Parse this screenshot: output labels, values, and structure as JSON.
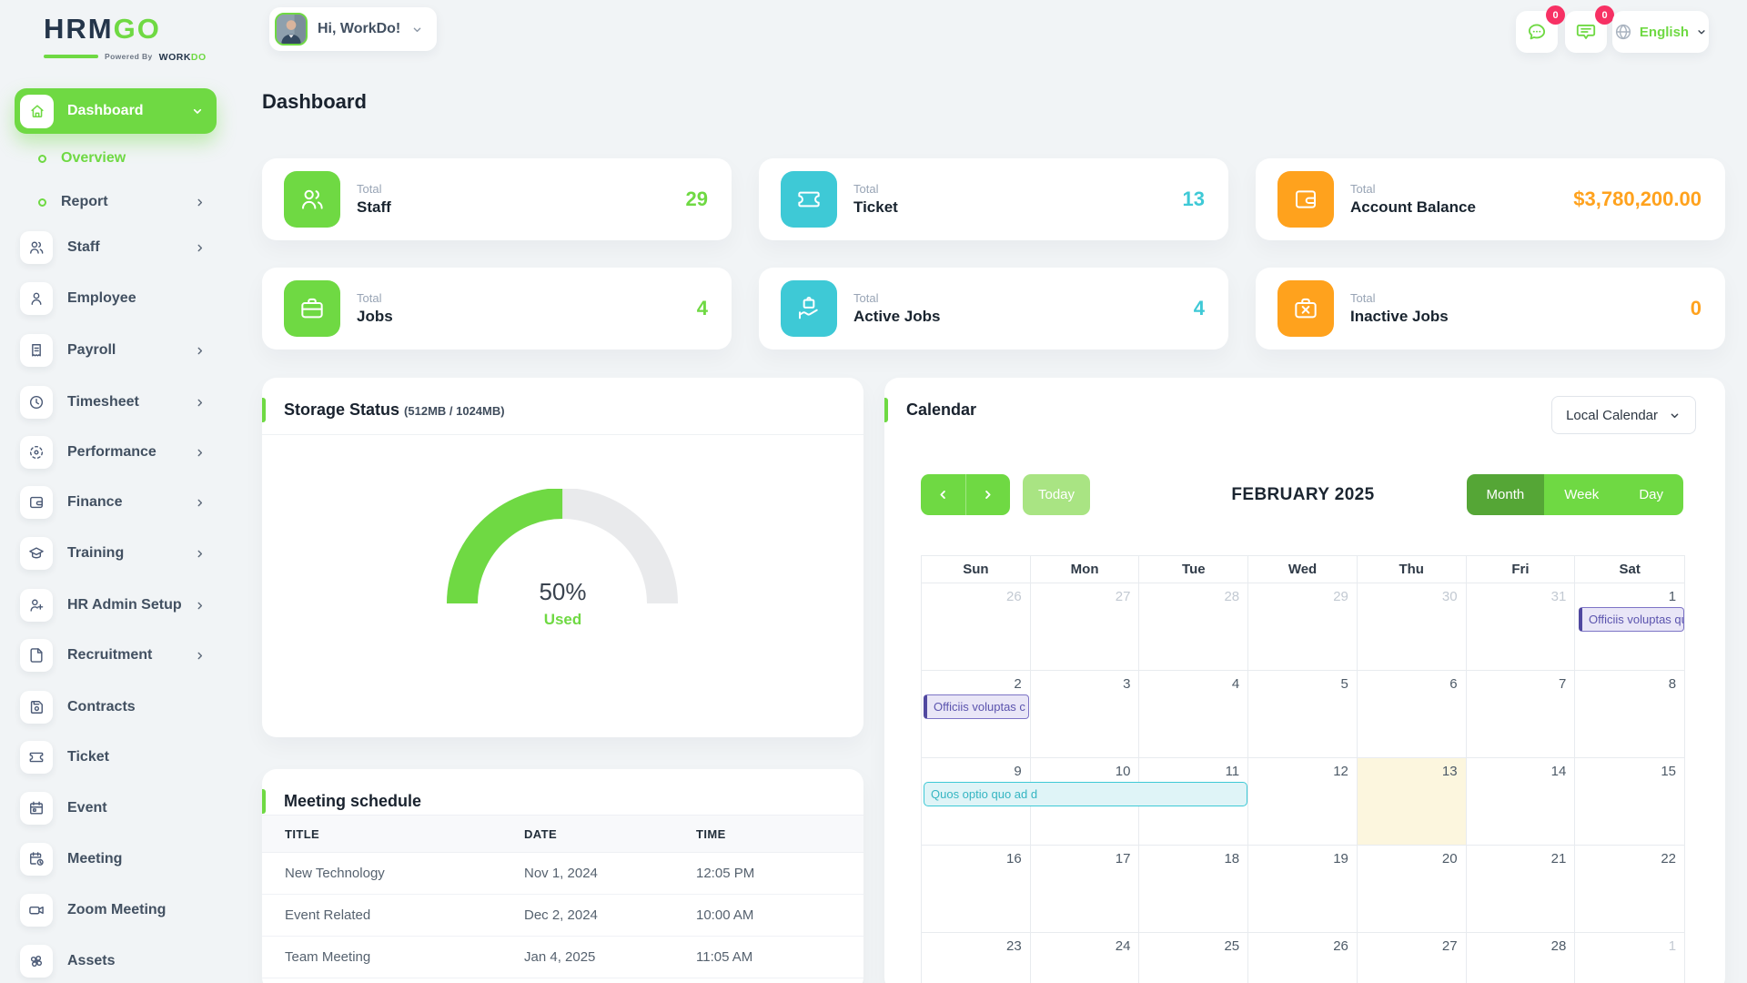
{
  "colors": {
    "green": "#6fd943",
    "dark_green": "#55a636",
    "light_green": "#a9e483",
    "cyan": "#3ec9d6",
    "orange": "#ffa21d",
    "badge": "#f73164",
    "purple": "#5b54ae"
  },
  "brand": {
    "hrm": "HRM",
    "go": "GO",
    "powered_by": "Powered By",
    "work": "WORK",
    "do": "DO"
  },
  "header": {
    "greeting": "Hi, WorkDo!",
    "language": "English",
    "messages_badge": "0",
    "notifications_badge": "0"
  },
  "page_title": "Dashboard",
  "sidebar": {
    "items": [
      {
        "label": "Dashboard",
        "icon": "home",
        "active": true,
        "chevron": "down"
      },
      {
        "label": "Overview",
        "icon": "ring",
        "sub": true,
        "active": true
      },
      {
        "label": "Report",
        "icon": "ring",
        "sub": true,
        "chevron": "right"
      },
      {
        "label": "Staff",
        "icon": "staff",
        "chevron": "right"
      },
      {
        "label": "Employee",
        "icon": "person"
      },
      {
        "label": "Payroll",
        "icon": "receipt",
        "chevron": "right"
      },
      {
        "label": "Timesheet",
        "icon": "clock",
        "chevron": "right"
      },
      {
        "label": "Performance",
        "icon": "target",
        "chevron": "right"
      },
      {
        "label": "Finance",
        "icon": "wallet",
        "chevron": "right"
      },
      {
        "label": "Training",
        "icon": "graduation",
        "chevron": "right"
      },
      {
        "label": "HR Admin Setup",
        "icon": "user-plus",
        "chevron": "right"
      },
      {
        "label": "Recruitment",
        "icon": "file",
        "chevron": "right"
      },
      {
        "label": "Contracts",
        "icon": "save"
      },
      {
        "label": "Ticket",
        "icon": "ticket"
      },
      {
        "label": "Event",
        "icon": "calendar"
      },
      {
        "label": "Meeting",
        "icon": "calendar-clock"
      },
      {
        "label": "Zoom Meeting",
        "icon": "video"
      },
      {
        "label": "Assets",
        "icon": "pinwheel"
      }
    ]
  },
  "stats": [
    {
      "prefix": "Total",
      "label": "Staff",
      "value": "29",
      "color": "green",
      "icon": "staff"
    },
    {
      "prefix": "Total",
      "label": "Ticket",
      "value": "13",
      "color": "cyan",
      "icon": "ticket"
    },
    {
      "prefix": "Total",
      "label": "Account Balance",
      "value": "$3,780,200.00",
      "color": "orange",
      "icon": "wallet"
    },
    {
      "prefix": "Total",
      "label": "Jobs",
      "value": "4",
      "color": "green",
      "icon": "briefcase"
    },
    {
      "prefix": "Total",
      "label": "Active Jobs",
      "value": "4",
      "color": "cyan",
      "icon": "hand-briefcase"
    },
    {
      "prefix": "Total",
      "label": "Inactive Jobs",
      "value": "0",
      "color": "orange",
      "icon": "briefcase-x"
    }
  ],
  "storage": {
    "title": "Storage Status",
    "subtitle": "(512MB / 1024MB)",
    "percent": 50,
    "percent_label": "50%",
    "used_label": "Used"
  },
  "meetings": {
    "title": "Meeting schedule",
    "columns": [
      "TITLE",
      "DATE",
      "TIME"
    ],
    "rows": [
      [
        "New Technology",
        "Nov 1, 2024",
        "12:05 PM"
      ],
      [
        "Event Related",
        "Dec 2, 2024",
        "10:00 AM"
      ],
      [
        "Team Meeting",
        "Jan 4, 2025",
        "11:05 AM"
      ]
    ]
  },
  "calendar": {
    "title": "Calendar",
    "source_select": "Local Calendar",
    "today_label": "Today",
    "month_title": "FEBRUARY 2025",
    "views": [
      "Month",
      "Week",
      "Day"
    ],
    "active_view": "Month",
    "day_headers": [
      "Sun",
      "Mon",
      "Tue",
      "Wed",
      "Thu",
      "Fri",
      "Sat"
    ],
    "weeks": [
      [
        {
          "day": 26,
          "muted": true
        },
        {
          "day": 27,
          "muted": true
        },
        {
          "day": 28,
          "muted": true
        },
        {
          "day": 29,
          "muted": true
        },
        {
          "day": 30,
          "muted": true
        },
        {
          "day": 31,
          "muted": true
        },
        {
          "day": 1
        }
      ],
      [
        {
          "day": 2
        },
        {
          "day": 3
        },
        {
          "day": 4
        },
        {
          "day": 5
        },
        {
          "day": 6
        },
        {
          "day": 7
        },
        {
          "day": 8
        }
      ],
      [
        {
          "day": 9
        },
        {
          "day": 10
        },
        {
          "day": 11
        },
        {
          "day": 12
        },
        {
          "day": 13
        },
        {
          "day": 14
        },
        {
          "day": 15
        }
      ],
      [
        {
          "day": 16
        },
        {
          "day": 17
        },
        {
          "day": 18
        },
        {
          "day": 19
        },
        {
          "day": 20
        },
        {
          "day": 21
        },
        {
          "day": 22
        }
      ],
      [
        {
          "day": 23
        },
        {
          "day": 24
        },
        {
          "day": 25
        },
        {
          "day": 26
        },
        {
          "day": 27
        },
        {
          "day": 28
        },
        {
          "day": 1,
          "muted": true
        }
      ]
    ],
    "today_cell": {
      "week": 2,
      "col": 4
    },
    "events": [
      {
        "label": "Officiis voluptas quia",
        "week": 0,
        "col": 6,
        "span": 1,
        "style": "purple"
      },
      {
        "label": "Officiis voluptas c",
        "week": 1,
        "col": 0,
        "span": 1,
        "style": "purple"
      },
      {
        "label": "Quos optio quo ad d",
        "week": 2,
        "col": 0,
        "span": 3,
        "style": "cyan"
      }
    ]
  }
}
